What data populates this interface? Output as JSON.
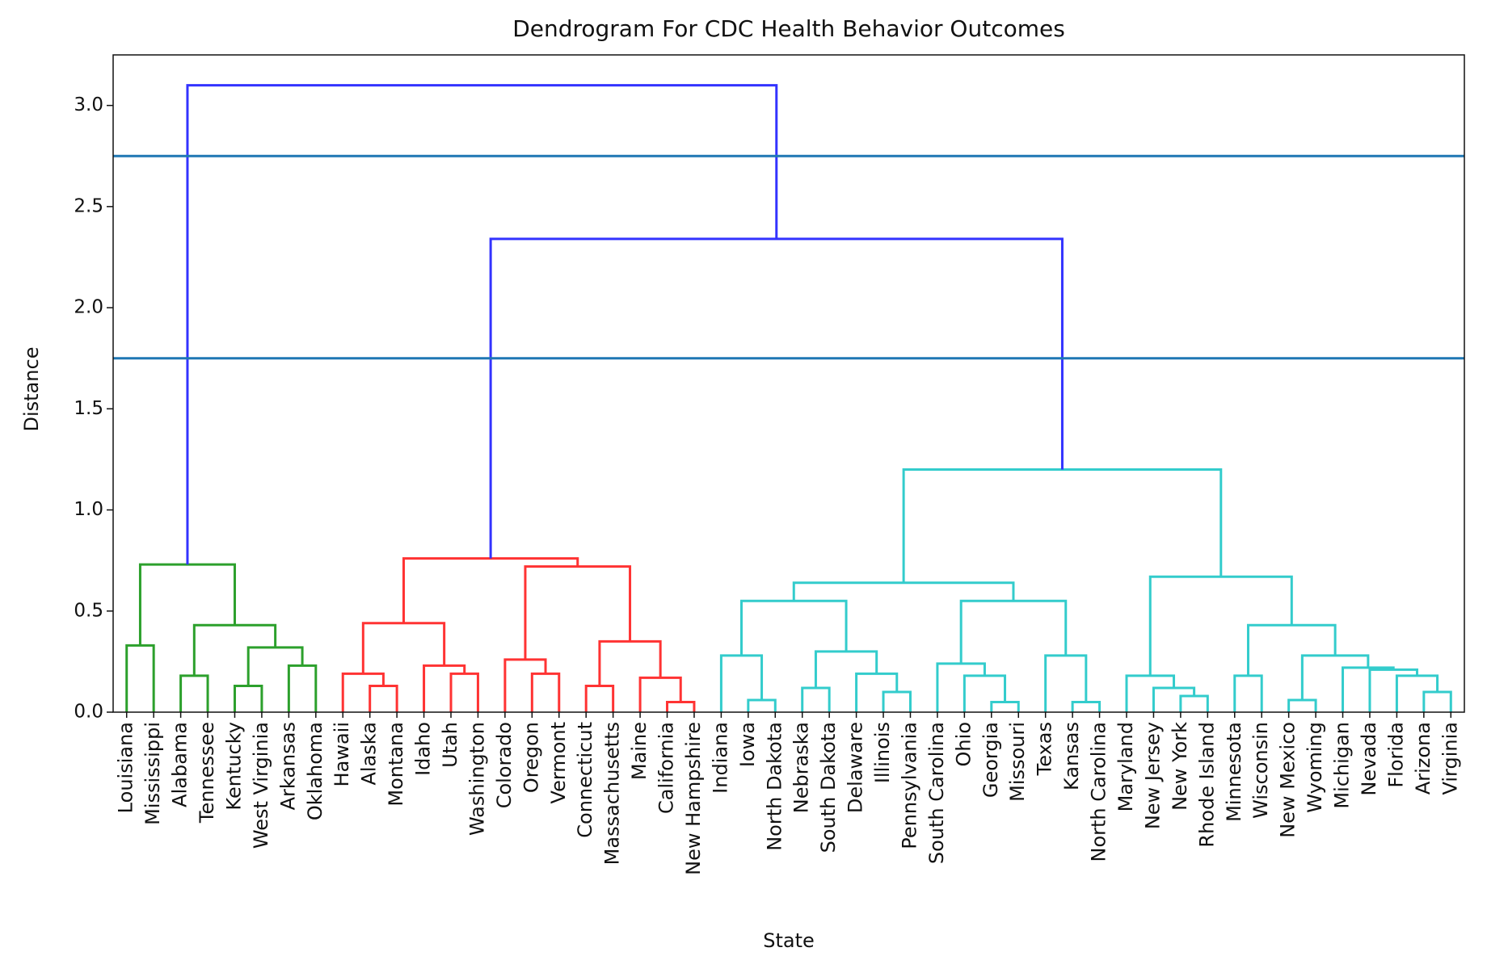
{
  "chart_data": {
    "type": "dendrogram",
    "title": "Dendrogram For CDC Health Behavior Outcomes",
    "xlabel": "State",
    "ylabel": "Distance",
    "ylim": [
      0,
      3.25
    ],
    "yticks": [
      {
        "value": 0,
        "label": "0.0"
      },
      0.5,
      {
        "value": 1,
        "label": "1.0"
      },
      1.5,
      {
        "value": 2,
        "label": "2.0"
      },
      2.5,
      {
        "value": 3,
        "label": "3.0"
      }
    ],
    "thresholds": [
      2.75,
      1.75
    ],
    "threshold_color": "#1f77b4",
    "tree": {
      "height": 3.1,
      "color": "#3333ff",
      "children": [
        {
          "height": 0.73,
          "color": "#2ca02c",
          "children": [
            {
              "height": 0.33,
              "color": "#2ca02c",
              "children": [
                "Louisiana",
                "Mississippi"
              ]
            },
            {
              "height": 0.43,
              "color": "#2ca02c",
              "children": [
                {
                  "height": 0.18,
                  "color": "#2ca02c",
                  "children": [
                    "Alabama",
                    "Tennessee"
                  ]
                },
                {
                  "height": 0.32,
                  "color": "#2ca02c",
                  "children": [
                    {
                      "height": 0.13,
                      "color": "#2ca02c",
                      "children": [
                        "Kentucky",
                        "West Virginia"
                      ]
                    },
                    {
                      "height": 0.23,
                      "color": "#2ca02c",
                      "children": [
                        "Arkansas",
                        "Oklahoma"
                      ]
                    }
                  ]
                }
              ]
            }
          ]
        },
        {
          "height": 2.34,
          "color": "#3333ff",
          "children": [
            {
              "height": 0.76,
              "color": "#ff3333",
              "children": [
                {
                  "height": 0.44,
                  "color": "#ff3333",
                  "children": [
                    {
                      "height": 0.19,
                      "color": "#ff3333",
                      "children": [
                        "Hawaii",
                        {
                          "height": 0.13,
                          "color": "#ff3333",
                          "children": [
                            "Alaska",
                            "Montana"
                          ]
                        }
                      ]
                    },
                    {
                      "height": 0.23,
                      "color": "#ff3333",
                      "children": [
                        "Idaho",
                        {
                          "height": 0.19,
                          "color": "#ff3333",
                          "children": [
                            "Utah",
                            "Washington"
                          ]
                        }
                      ]
                    }
                  ]
                },
                {
                  "height": 0.72,
                  "color": "#ff3333",
                  "children": [
                    {
                      "height": 0.26,
                      "color": "#ff3333",
                      "children": [
                        "Colorado",
                        {
                          "height": 0.19,
                          "color": "#ff3333",
                          "children": [
                            "Oregon",
                            "Vermont"
                          ]
                        }
                      ]
                    },
                    {
                      "height": 0.35,
                      "color": "#ff3333",
                      "children": [
                        {
                          "height": 0.13,
                          "color": "#ff3333",
                          "children": [
                            "Connecticut",
                            "Massachusetts"
                          ]
                        },
                        {
                          "height": 0.17,
                          "color": "#ff3333",
                          "children": [
                            "Maine",
                            {
                              "height": 0.05,
                              "color": "#ff3333",
                              "children": [
                                "California",
                                "New Hampshire"
                              ]
                            }
                          ]
                        }
                      ]
                    }
                  ]
                }
              ]
            },
            {
              "height": 1.2,
              "color": "#33cccc",
              "children": [
                {
                  "height": 0.64,
                  "color": "#33cccc",
                  "children": [
                    {
                      "height": 0.55,
                      "color": "#33cccc",
                      "children": [
                        {
                          "height": 0.28,
                          "color": "#33cccc",
                          "children": [
                            "Indiana",
                            {
                              "height": 0.06,
                              "color": "#33cccc",
                              "children": [
                                "Iowa",
                                "North Dakota"
                              ]
                            }
                          ]
                        },
                        {
                          "height": 0.3,
                          "color": "#33cccc",
                          "children": [
                            {
                              "height": 0.12,
                              "color": "#33cccc",
                              "children": [
                                "Nebraska",
                                "South Dakota"
                              ]
                            },
                            {
                              "height": 0.19,
                              "color": "#33cccc",
                              "children": [
                                "Delaware",
                                {
                                  "height": 0.1,
                                  "color": "#33cccc",
                                  "children": [
                                    "Illinois",
                                    "Pennsylvania"
                                  ]
                                }
                              ]
                            }
                          ]
                        }
                      ]
                    },
                    {
                      "height": 0.55,
                      "color": "#33cccc",
                      "children": [
                        {
                          "height": 0.24,
                          "color": "#33cccc",
                          "children": [
                            "South Carolina",
                            {
                              "height": 0.18,
                              "color": "#33cccc",
                              "children": [
                                "Ohio",
                                {
                                  "height": 0.05,
                                  "color": "#33cccc",
                                  "children": [
                                    "Georgia",
                                    "Missouri"
                                  ]
                                }
                              ]
                            }
                          ]
                        },
                        {
                          "height": 0.28,
                          "color": "#33cccc",
                          "children": [
                            "Texas",
                            {
                              "height": 0.05,
                              "color": "#33cccc",
                              "children": [
                                "Kansas",
                                "North Carolina"
                              ]
                            }
                          ]
                        }
                      ]
                    }
                  ]
                },
                {
                  "height": 0.67,
                  "color": "#33cccc",
                  "children": [
                    {
                      "height": 0.18,
                      "color": "#33cccc",
                      "children": [
                        "Maryland",
                        {
                          "height": 0.12,
                          "color": "#33cccc",
                          "children": [
                            "New Jersey",
                            {
                              "height": 0.08,
                              "color": "#33cccc",
                              "children": [
                                "New York",
                                "Rhode Island"
                              ]
                            }
                          ]
                        }
                      ]
                    },
                    {
                      "height": 0.43,
                      "color": "#33cccc",
                      "children": [
                        {
                          "height": 0.18,
                          "color": "#33cccc",
                          "children": [
                            "Minnesota",
                            "Wisconsin"
                          ]
                        },
                        {
                          "height": 0.28,
                          "color": "#33cccc",
                          "children": [
                            {
                              "height": 0.06,
                              "color": "#33cccc",
                              "children": [
                                "New Mexico",
                                "Wyoming"
                              ]
                            },
                            {
                              "height": 0.22,
                              "color": "#33cccc",
                              "children": [
                                "Michigan",
                                {
                                  "height": 0.21,
                                  "color": "#33cccc",
                                  "children": [
                                    "Nevada",
                                    {
                                      "height": 0.18,
                                      "color": "#33cccc",
                                      "children": [
                                        "Florida",
                                        {
                                          "height": 0.1,
                                          "color": "#33cccc",
                                          "children": [
                                            "Arizona",
                                            "Virginia"
                                          ]
                                        }
                                      ]
                                    }
                                  ]
                                }
                              ]
                            }
                          ]
                        }
                      ]
                    }
                  ]
                }
              ]
            }
          ]
        }
      ]
    }
  }
}
